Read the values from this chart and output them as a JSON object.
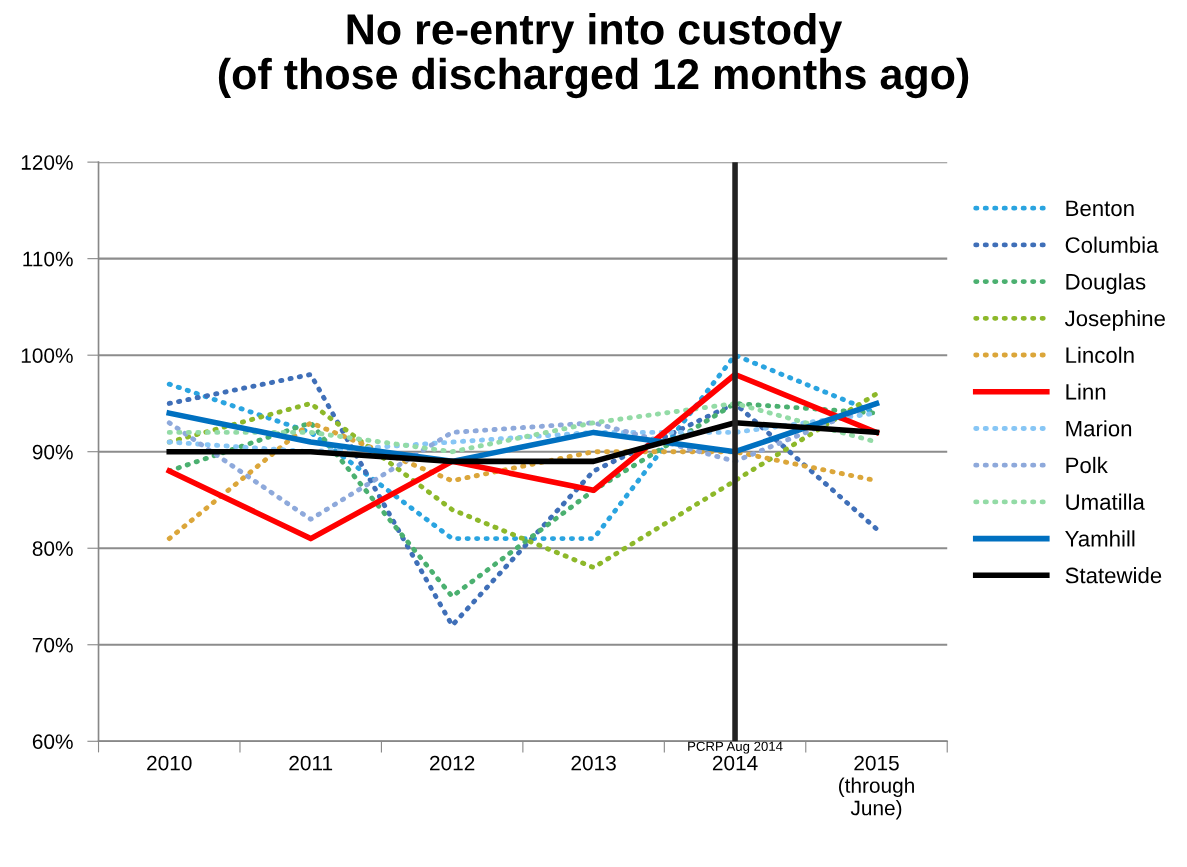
{
  "chart_data": {
    "type": "line",
    "title": "No re-entry into custody\n(of those discharged 12 months ago)",
    "categories": [
      "2010",
      "2011",
      "2012",
      "2013",
      "2014",
      "2015\n(through\nJune)"
    ],
    "ylim": [
      60,
      120
    ],
    "yticks": [
      {
        "value": 60,
        "label": "60%"
      },
      {
        "value": 70,
        "label": "70%"
      },
      {
        "value": 80,
        "label": "80%"
      },
      {
        "value": 90,
        "label": "90%"
      },
      {
        "value": 100,
        "label": "100%"
      },
      {
        "value": 110,
        "label": "110%"
      },
      {
        "value": 120,
        "label": "120%"
      }
    ],
    "grid": "y",
    "legend": "right",
    "marker": "none",
    "ref_lines": [
      {
        "axis": "x",
        "value": "2014",
        "label": "PCRP Aug 2014",
        "color": "#222222",
        "line_style": "solid"
      }
    ],
    "series": [
      {
        "name": "Benton",
        "color": "#2aa4e0",
        "line_style": "dotted",
        "values": [
          97,
          92,
          81,
          81,
          100,
          94
        ]
      },
      {
        "name": "Columbia",
        "color": "#3f6fb8",
        "line_style": "dotted",
        "values": [
          95,
          98,
          72,
          88,
          95,
          82
        ]
      },
      {
        "name": "Douglas",
        "color": "#4bb070",
        "line_style": "dotted",
        "values": [
          88,
          93,
          75,
          86,
          95,
          94
        ]
      },
      {
        "name": "Josephine",
        "color": "#8db82a",
        "line_style": "dotted",
        "values": [
          91,
          95,
          84,
          78,
          87,
          96
        ]
      },
      {
        "name": "Lincoln",
        "color": "#dba63a",
        "line_style": "dotted",
        "values": [
          81,
          93,
          87,
          90,
          90,
          87
        ]
      },
      {
        "name": "Linn",
        "color": "#ff0000",
        "line_style": "solid",
        "values": [
          88,
          81,
          89,
          86,
          98,
          92
        ]
      },
      {
        "name": "Marion",
        "color": "#87c6f5",
        "line_style": "dotted",
        "values": [
          91,
          90,
          91,
          92,
          92,
          94
        ]
      },
      {
        "name": "Polk",
        "color": "#8ea9db",
        "line_style": "dotted",
        "values": [
          93,
          83,
          92,
          93,
          89,
          95
        ]
      },
      {
        "name": "Umatilla",
        "color": "#93dba6",
        "line_style": "dotted",
        "values": [
          92,
          92,
          90,
          93,
          95,
          91
        ]
      },
      {
        "name": "Yamhill",
        "color": "#0070c0",
        "line_style": "solid",
        "values": [
          94,
          91,
          89,
          92,
          90,
          95
        ]
      },
      {
        "name": "Statewide",
        "color": "#000000",
        "line_style": "solid",
        "values": [
          90,
          90,
          89,
          89,
          93,
          92
        ]
      }
    ]
  }
}
